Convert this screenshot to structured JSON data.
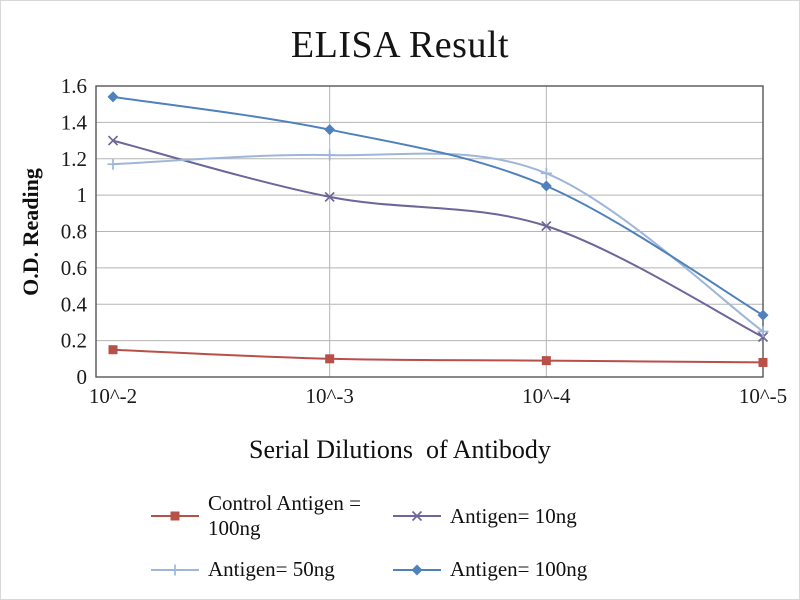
{
  "figure": {
    "title": "ELISA Result",
    "y_axis_label": "O.D. Reading",
    "x_axis_label": "Serial Dilutions  of Antibody"
  },
  "chart_data": {
    "type": "line",
    "title": "ELISA Result",
    "xlabel": "Serial Dilutions  of Antibody",
    "ylabel": "O.D. Reading",
    "categories": [
      "10^-2",
      "10^-3",
      "10^-4",
      "10^-5"
    ],
    "ylim": [
      0,
      1.6
    ],
    "ytick_step": 0.2,
    "ytick_labels": [
      "0",
      "0.2",
      "0.4",
      "0.6",
      "0.8",
      "1",
      "1.2",
      "1.4",
      "1.6"
    ],
    "grid": true,
    "legend_position": "bottom",
    "line_style": "smooth",
    "series": [
      {
        "name": "Control Antigen = 100ng",
        "color": "#b8504a",
        "marker": "square",
        "values": [
          0.15,
          0.1,
          0.09,
          0.08
        ]
      },
      {
        "name": "Antigen= 10ng",
        "color": "#6c6699",
        "marker": "x",
        "values": [
          1.3,
          0.99,
          0.83,
          0.22
        ]
      },
      {
        "name": "Antigen= 50ng",
        "color": "#9db6d9",
        "marker": "plus",
        "values": [
          1.17,
          1.22,
          1.12,
          0.25
        ]
      },
      {
        "name": "Antigen= 100ng",
        "color": "#4f81bd",
        "marker": "diamond",
        "values": [
          1.54,
          1.36,
          1.05,
          0.34
        ]
      }
    ]
  }
}
